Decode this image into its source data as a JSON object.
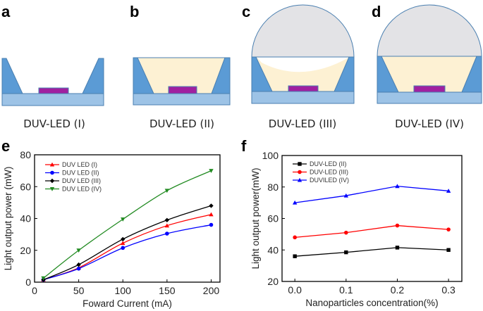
{
  "panels": {
    "a": {
      "letter": "a",
      "label": "DUV-LED (I)"
    },
    "b": {
      "letter": "b",
      "label": "DUV-LED (II)"
    },
    "c": {
      "letter": "c",
      "label": "DUV-LED (III)"
    },
    "d": {
      "letter": "d",
      "label": "DUV-LED (IV)"
    },
    "e": {
      "letter": "e"
    },
    "f": {
      "letter": "f"
    }
  },
  "colors": {
    "housing": "#5b9bd5",
    "substrate": "#9dc3e6",
    "chip": "#a020a0",
    "encapsulant": "#fdf1d3",
    "dome": "#e3e3e6"
  },
  "chart_data": [
    {
      "type": "line",
      "xlabel": "Foward Current (mA)",
      "ylabel": "Light output power (mW)",
      "xlim": [
        0,
        210
      ],
      "ylim": [
        0,
        80
      ],
      "xticks": [
        0,
        50,
        100,
        150,
        200
      ],
      "yticks": [
        0,
        20,
        40,
        60,
        80
      ],
      "legend": "top-left",
      "x": [
        10,
        50,
        100,
        150,
        200
      ],
      "series": [
        {
          "name": "DUV LED (I)",
          "color": "#ff0000",
          "marker": "triangle-up",
          "values": [
            1.5,
            9,
            24.5,
            35.5,
            42.5
          ]
        },
        {
          "name": "DUV LED (II)",
          "color": "#0000ff",
          "marker": "circle",
          "values": [
            1.5,
            8.5,
            21.5,
            30.5,
            36
          ]
        },
        {
          "name": "DUV LED (III)",
          "color": "#000000",
          "marker": "diamond",
          "values": [
            1.5,
            11,
            27,
            39,
            48
          ]
        },
        {
          "name": "DUV LED (IV)",
          "color": "#228b22",
          "marker": "triangle-down",
          "values": [
            2.5,
            20,
            39.5,
            57.5,
            70
          ]
        }
      ]
    },
    {
      "type": "line",
      "xlabel": "Nanoparticles concentration(%)",
      "ylabel": "Light output power(mW)",
      "xlim": [
        -0.025,
        0.326
      ],
      "ylim": [
        20,
        100
      ],
      "xticks": [
        "0.0",
        "0.1",
        "0.2",
        "0.3"
      ],
      "yticks": [
        20,
        40,
        60,
        80,
        100
      ],
      "legend": "top-left",
      "x": [
        0.0,
        0.1,
        0.2,
        0.3
      ],
      "series": [
        {
          "name": "DUV-LED (II)",
          "color": "#000000",
          "marker": "square",
          "values": [
            36,
            38.5,
            41.5,
            40
          ]
        },
        {
          "name": "DUV-LED (III)",
          "color": "#ff0000",
          "marker": "circle",
          "values": [
            48,
            51,
            55.5,
            53
          ]
        },
        {
          "name": "DUVILED (IV)",
          "color": "#0000ff",
          "marker": "triangle-up",
          "values": [
            70,
            74.5,
            80.5,
            77.5
          ]
        }
      ]
    }
  ]
}
